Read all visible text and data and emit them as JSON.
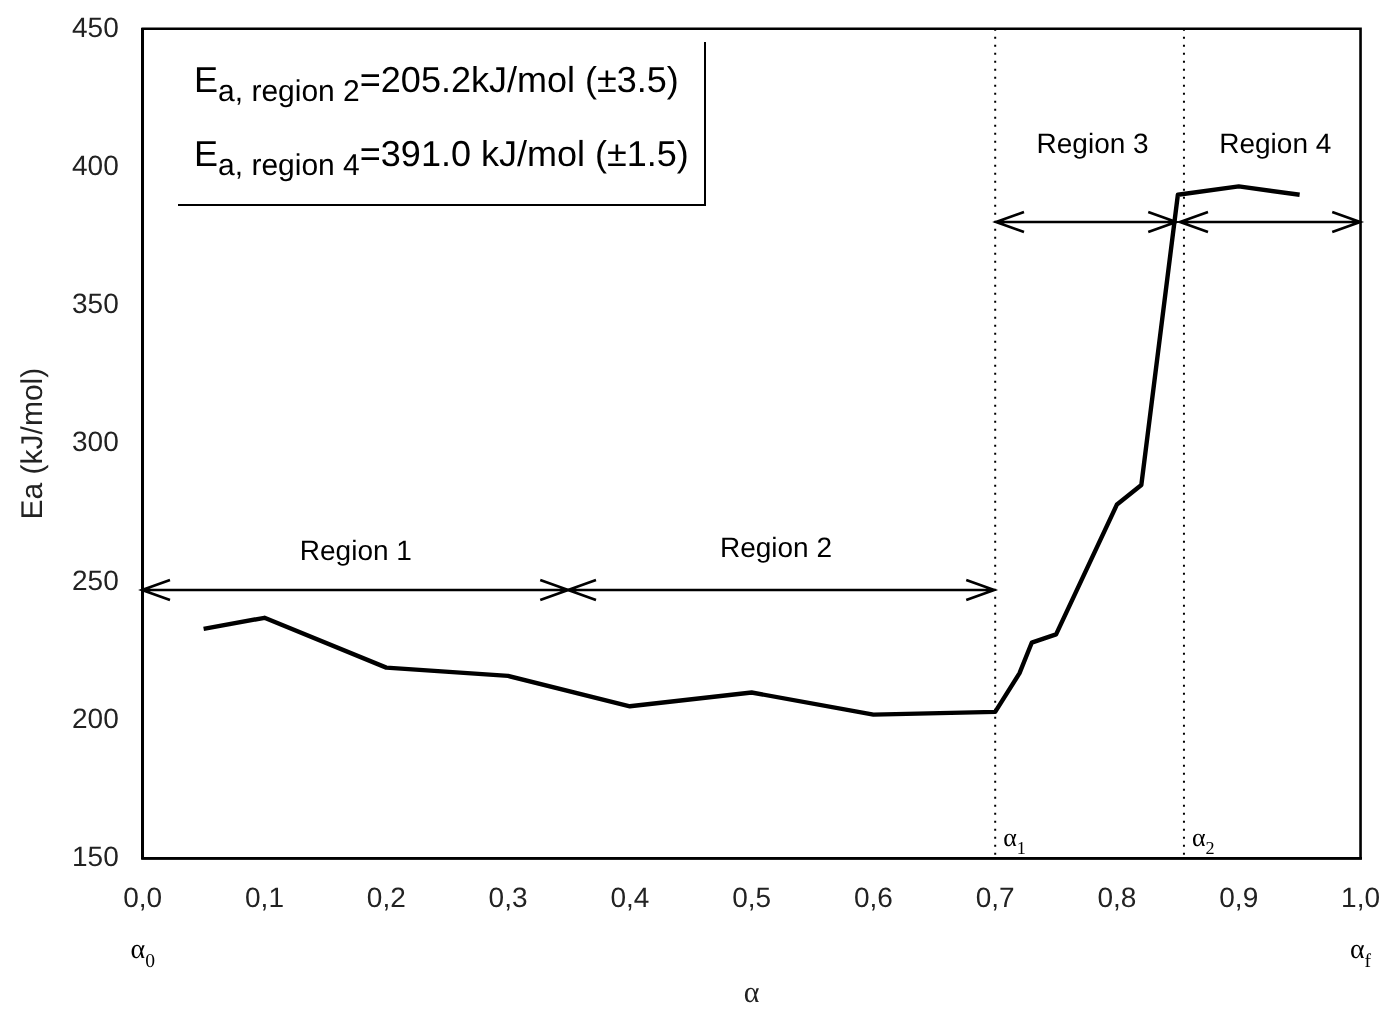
{
  "chart_data": {
    "type": "line",
    "xlabel": "α",
    "ylabel": "Ea (kJ/mol)",
    "x": [
      0.05,
      0.1,
      0.2,
      0.3,
      0.4,
      0.5,
      0.6,
      0.7,
      0.72,
      0.73,
      0.75,
      0.8,
      0.82,
      0.85,
      0.9,
      0.95
    ],
    "series": [
      {
        "color": "#000000",
        "values": [
          233,
          237,
          219,
          216,
          205,
          210,
          202,
          203,
          217,
          228,
          231,
          278,
          285,
          390,
          393,
          390
        ]
      }
    ],
    "xlim": [
      0,
      1
    ],
    "xticks": [
      {
        "value": 0,
        "label": "0,0"
      },
      {
        "value": 0.1,
        "label": "0,1"
      },
      {
        "value": 0.2,
        "label": "0,2"
      },
      {
        "value": 0.3,
        "label": "0,3"
      },
      {
        "value": 0.4,
        "label": "0,4"
      },
      {
        "value": 0.5,
        "label": "0,5"
      },
      {
        "value": 0.6,
        "label": "0,6"
      },
      {
        "value": 0.7,
        "label": "0,7"
      },
      {
        "value": 0.8,
        "label": "0,8"
      },
      {
        "value": 0.9,
        "label": "0,9"
      },
      {
        "value": 1,
        "label": "1,0"
      }
    ],
    "ylim": [
      150,
      450
    ],
    "yticks": [
      150,
      200,
      250,
      300,
      350,
      400,
      450
    ],
    "grid": false,
    "legend": false,
    "marker": "none",
    "line_style": "solid",
    "ref_lines": [
      {
        "axis": "x",
        "value": 0.7,
        "label": "α$_{1}$",
        "line_style": "dotted",
        "color": "#000000"
      },
      {
        "axis": "x",
        "value": 0.855,
        "label": "α$_{2}$",
        "line_style": "dotted",
        "color": "#000000"
      }
    ],
    "annotations": [
      "E$_{a, region 2}$=205.2kJ/mol (±3.5)",
      "E$_{a, region 4}$=391.0 kJ/mol (±1.5)",
      "α$_{0}$",
      "α$_{f}$",
      "Region 1",
      "Region 2",
      "Region 3",
      "Region 4"
    ]
  }
}
